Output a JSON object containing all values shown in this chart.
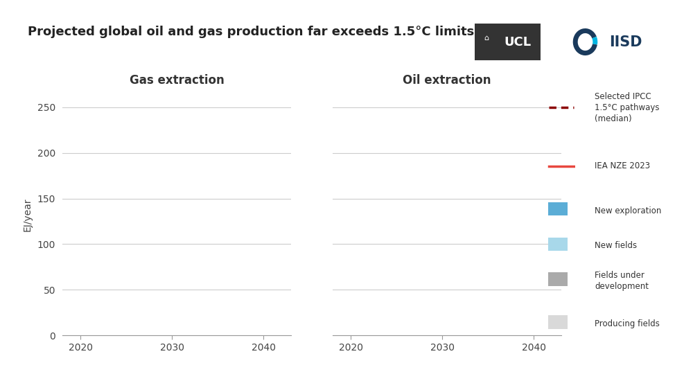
{
  "title": "Projected global oil and gas production far exceeds 1.5°C limits",
  "title_fontsize": 13,
  "title_fontweight": "bold",
  "background_color": "#ffffff",
  "subplot_titles": [
    "Gas extraction",
    "Oil extraction"
  ],
  "subplot_title_fontsize": 12,
  "ylabel": "EJ/year",
  "ylabel_fontsize": 10,
  "xlim": [
    2018,
    2043
  ],
  "ylim": [
    0,
    265
  ],
  "xticks": [
    2020,
    2030,
    2040
  ],
  "yticks": [
    0,
    50,
    100,
    150,
    200,
    250
  ],
  "grid_color": "#cccccc",
  "grid_linewidth": 0.8,
  "axis_color": "#999999",
  "tick_label_fontsize": 10,
  "legend_items_lines": [
    {
      "label": "Selected IPCC\n1.5°C pathways\n(median)",
      "color": "#8b0000",
      "linestyle": "dashed",
      "linewidth": 2
    },
    {
      "label": "IEA NZE 2023",
      "color": "#e8473f",
      "linestyle": "solid",
      "linewidth": 2
    }
  ],
  "legend_items_patches": [
    {
      "label": "New exploration",
      "color": "#5badd6"
    },
    {
      "label": "New fields",
      "color": "#a8d8ea"
    },
    {
      "label": "Fields under\ndevelopment",
      "color": "#aaaaaa"
    },
    {
      "label": "Producing fields",
      "color": "#d9d9d9"
    }
  ],
  "ucl_box_color": "#333333",
  "ucl_text_color": "#ffffff",
  "iisd_blue": "#1a3a5c",
  "iisd_cyan": "#00b5e2"
}
